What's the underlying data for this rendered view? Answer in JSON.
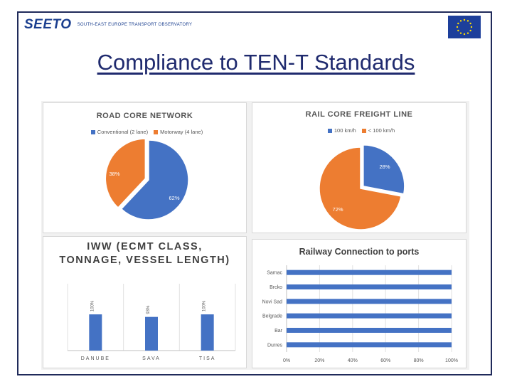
{
  "header": {
    "logo_text": "SEETO",
    "logo_subtitle": "SOUTH-EAST EUROPE TRANSPORT OBSERVATORY",
    "flag_icon": "eu-flag-icon"
  },
  "page_title": "Compliance to TEN-T Standards",
  "colors": {
    "blue": "#4472c4",
    "orange": "#ed7d31",
    "axis": "#bfbfbf",
    "label": "#595959"
  },
  "chart_data": [
    {
      "type": "pie",
      "title": "ROAD CORE NETWORK",
      "legend": [
        "Conventional (2 lane)",
        "Motorway (4 lane)"
      ],
      "legend_placement": "top",
      "labels": [
        "Conventional (2 lane)",
        "Motorway (4 lane)"
      ],
      "values": [
        62,
        38
      ],
      "value_labels": [
        "62%",
        "38%"
      ]
    },
    {
      "type": "pie",
      "title": "RAIL CORE FREIGHT LINE",
      "legend": [
        "100 km/h",
        "< 100 km/h"
      ],
      "legend_placement": "top",
      "labels": [
        "100 km/h",
        "< 100 km/h"
      ],
      "values": [
        28,
        72
      ],
      "value_labels": [
        "28%",
        "72%"
      ]
    },
    {
      "type": "bar",
      "title": [
        "IWW (ECMT CLASS,",
        "TONNAGE, VESSEL LENGTH)"
      ],
      "categories": [
        "DANUBE",
        "SAVA",
        "TISA"
      ],
      "values": [
        100,
        93,
        100
      ],
      "value_labels": [
        "100%",
        "93%",
        "100%"
      ],
      "ylim": [
        0,
        220
      ],
      "grid": false
    },
    {
      "type": "bar",
      "orientation": "horizontal",
      "title": "Railway Connection to ports",
      "categories": [
        "Samac",
        "Brcko",
        "Novi Sad",
        "Belgrade",
        "Bar",
        "Durres"
      ],
      "values": [
        100,
        100,
        100,
        100,
        100,
        100
      ],
      "xlim": [
        0,
        100
      ],
      "xticks": [
        "0%",
        "20%",
        "40%",
        "60%",
        "80%",
        "100%"
      ],
      "grid": true
    }
  ]
}
